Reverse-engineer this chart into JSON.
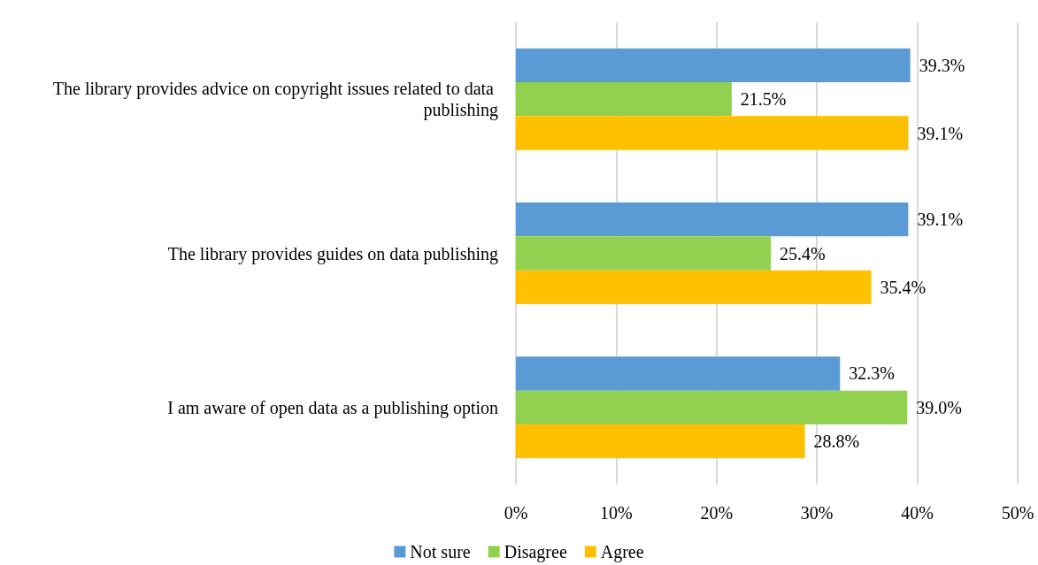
{
  "chart_data": {
    "type": "bar",
    "orientation": "horizontal",
    "categories": [
      "The library provides advice on copyright issues related to data publishing",
      "The library provides guides on data publishing",
      "I am aware of open data as a publishing option"
    ],
    "series": [
      {
        "name": "Not sure",
        "color": "#5b9bd5",
        "values": [
          39.3,
          39.1,
          32.3
        ],
        "value_labels": [
          "39.3%",
          "39.1%",
          "32.3%"
        ]
      },
      {
        "name": "Disagree",
        "color": "#92d050",
        "values": [
          21.5,
          25.4,
          39.0
        ],
        "value_labels": [
          "21.5%",
          "25.4%",
          "39.0%"
        ]
      },
      {
        "name": "Agree",
        "color": "#ffc000",
        "values": [
          39.1,
          35.4,
          28.8
        ],
        "value_labels": [
          "39.1%",
          "35.4%",
          "28.8%"
        ]
      }
    ],
    "xlim": [
      0,
      50
    ],
    "xticks": [
      {
        "value": 0,
        "label": "0%"
      },
      {
        "value": 10,
        "label": "10%"
      },
      {
        "value": 20,
        "label": "20%"
      },
      {
        "value": 30,
        "label": "30%"
      },
      {
        "value": 40,
        "label": "40%"
      },
      {
        "value": 50,
        "label": "50%"
      }
    ],
    "grid": "x",
    "legend": "bottom"
  }
}
